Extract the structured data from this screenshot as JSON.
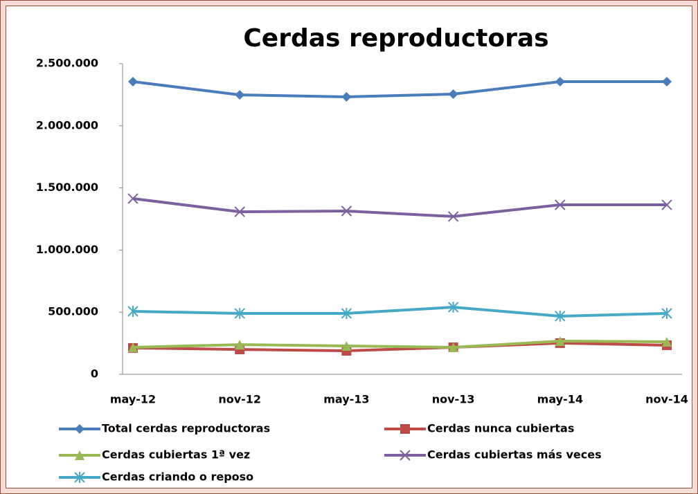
{
  "chart_data": {
    "type": "line",
    "title": "Cerdas reproductoras",
    "categories": [
      "may-12",
      "nov-12",
      "may-13",
      "nov-13",
      "may-14",
      "nov-14"
    ],
    "series": [
      {
        "name": "Total cerdas reproductoras",
        "color": "#4a7ebb",
        "marker": "diamond",
        "values": [
          2355000,
          2249000,
          2233000,
          2255000,
          2355000,
          2355000
        ]
      },
      {
        "name": "Cerdas nunca cubiertas",
        "color": "#be4b48",
        "marker": "square",
        "values": [
          212000,
          200000,
          189000,
          217000,
          251000,
          234000
        ]
      },
      {
        "name": "Cerdas cubiertas 1ª vez",
        "color": "#98b954",
        "marker": "triangle",
        "values": [
          217000,
          239000,
          228000,
          217000,
          267000,
          262000
        ]
      },
      {
        "name": "Cerdas cubiertas más veces",
        "color": "#7d60a0",
        "marker": "x",
        "values": [
          1414000,
          1308000,
          1314000,
          1270000,
          1364000,
          1364000
        ]
      },
      {
        "name": "Cerdas criando o reposo",
        "color": "#46aac5",
        "marker": "star",
        "values": [
          507000,
          490000,
          490000,
          540000,
          468000,
          490000
        ]
      }
    ],
    "ylim": [
      0,
      2500000
    ],
    "yticks": [
      0,
      {
        "value": 500000,
        "label": "500.000"
      },
      {
        "value": 1000000,
        "label": "1.000.000"
      },
      {
        "value": 1500000,
        "label": "1.500.000"
      },
      {
        "value": 2000000,
        "label": "2.000.000"
      },
      {
        "value": 2500000,
        "label": "2.500.000"
      }
    ],
    "grid": false
  }
}
